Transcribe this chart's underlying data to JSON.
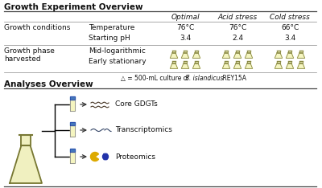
{
  "title_top": "Growth Experiment Overview",
  "title_bottom": "Analyses Overview",
  "headers": [
    "Optimal",
    "Acid stress",
    "Cold stress"
  ],
  "row1_label": "Growth conditions",
  "row1_sub1": "Temperature",
  "row1_sub2": "Starting pH",
  "temp_values": [
    "76°C",
    "76°C",
    "66°C"
  ],
  "ph_values": [
    "3.4",
    "2.4",
    "3.4"
  ],
  "row2_label1": "Growth phase",
  "row2_label2": "harvested",
  "row2_sub1": "Mid-logarithmic",
  "row2_sub2": "Early stationary",
  "flask_note_prefix": "△ = 500-mL culture of ",
  "flask_note_italic": "S. islandicus",
  "flask_note_suffix": " REY15A",
  "analyses": [
    "Core GDGTs",
    "Transcriptomics",
    "Proteomics"
  ],
  "flask_fill": "#f5f5c0",
  "flask_edge": "#888844",
  "flask_fill_large": "#f0f0c0",
  "flask_edge_large": "#777733",
  "tube_fill": "#f5f5c0",
  "tube_edge": "#888888",
  "tube_cap": "#4477bb",
  "text_color": "#111111",
  "line_color": "#888888",
  "title_line_color": "#444444",
  "arrow_color": "#333333",
  "gdgt_color": "#443322",
  "rna_color": "#334466",
  "pac_color": "#ddaa00",
  "protein_color": "#2233aa"
}
